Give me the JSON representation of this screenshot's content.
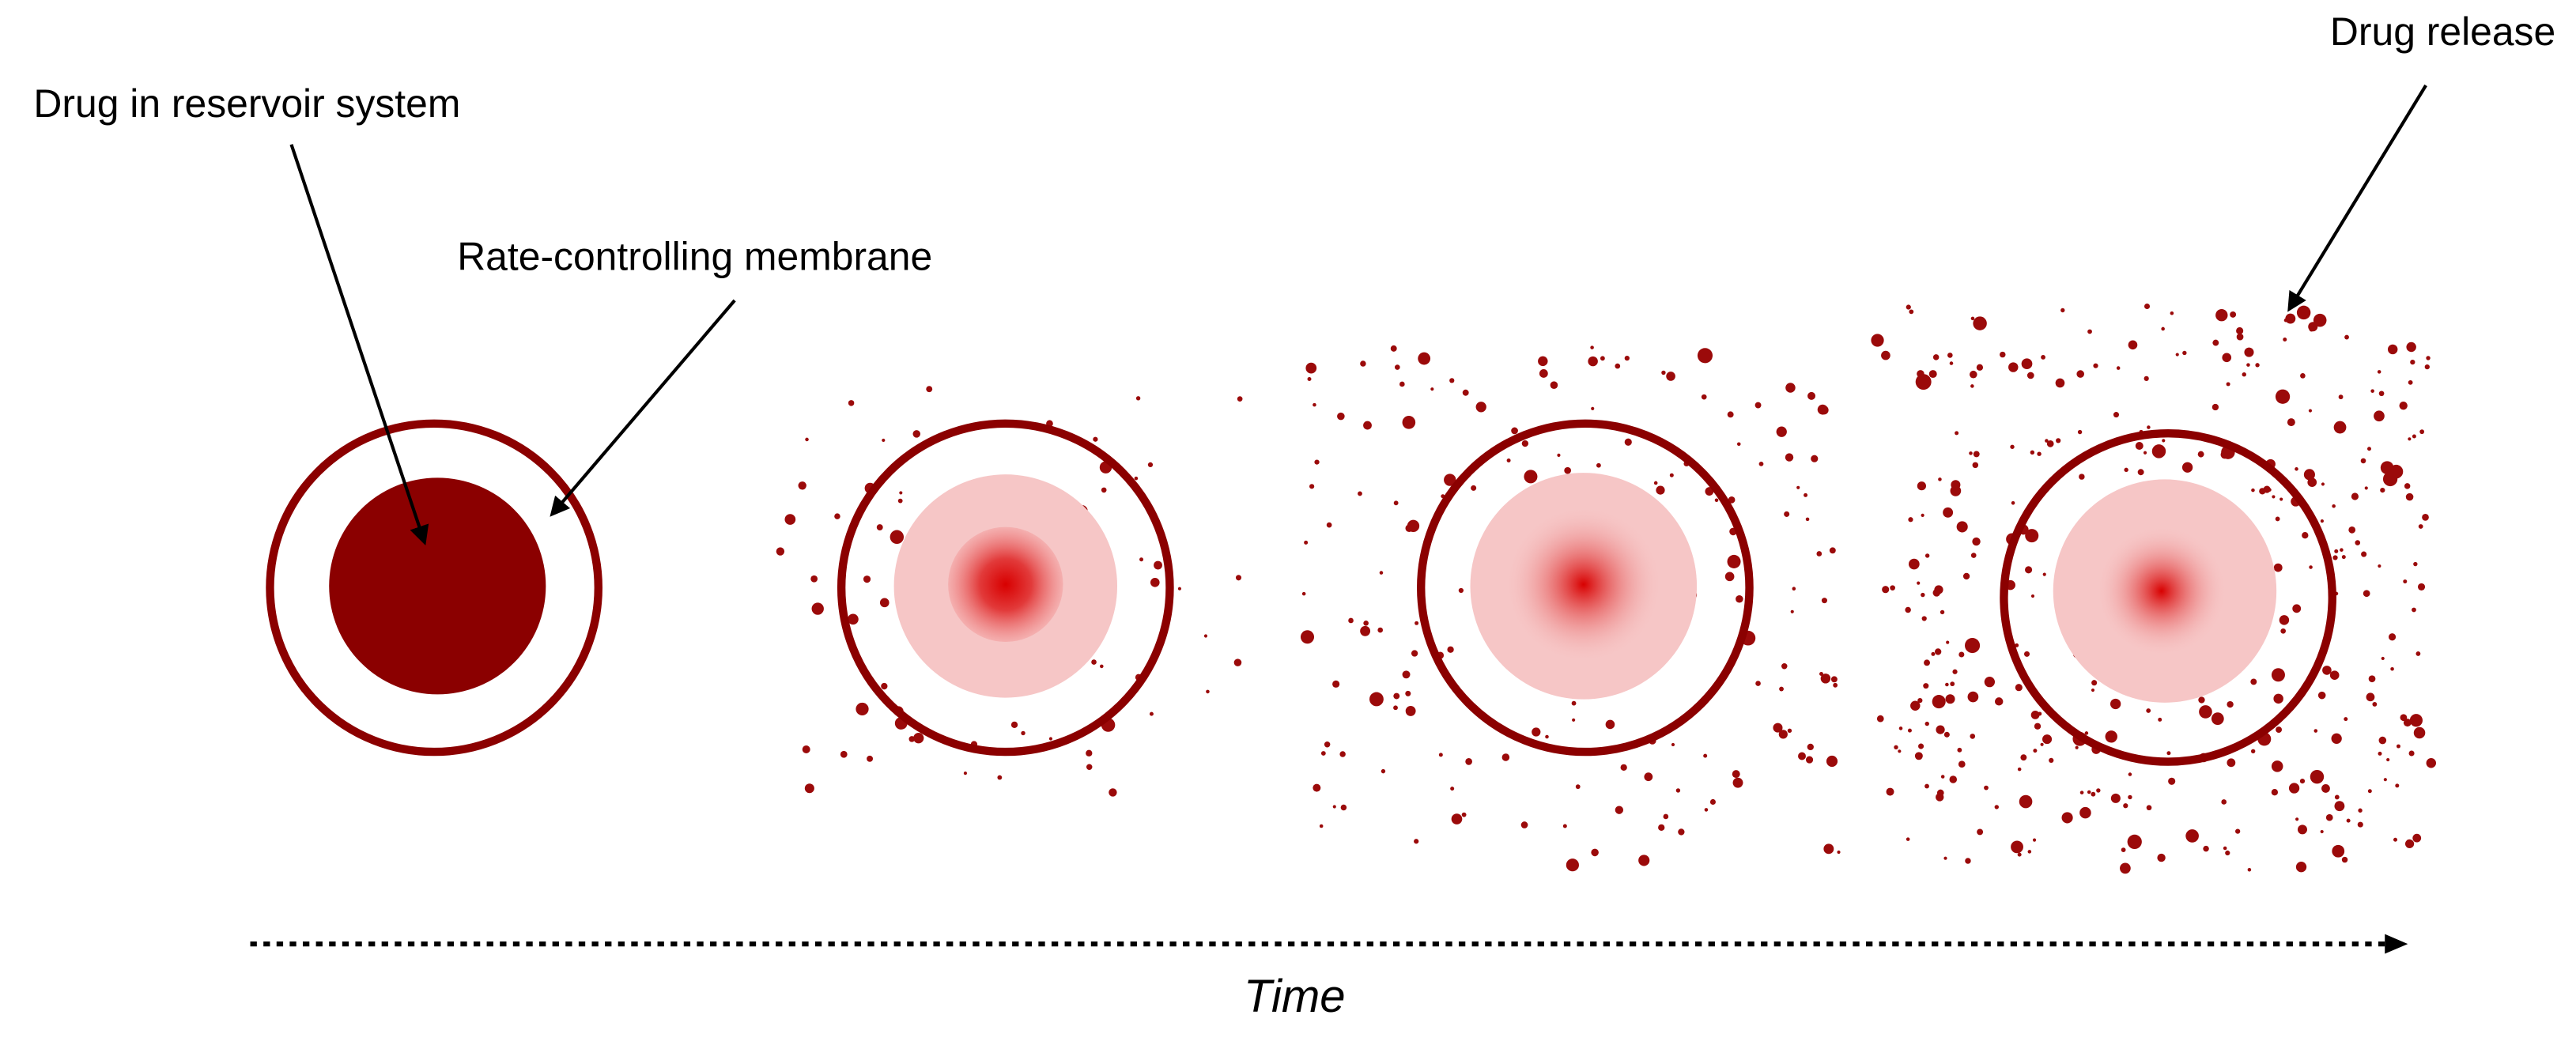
{
  "labels": {
    "reservoir": "Drug in reservoir system",
    "membrane": "Rate-controlling membrane",
    "release": "Drug release"
  },
  "axis": {
    "label": "Time"
  }
}
